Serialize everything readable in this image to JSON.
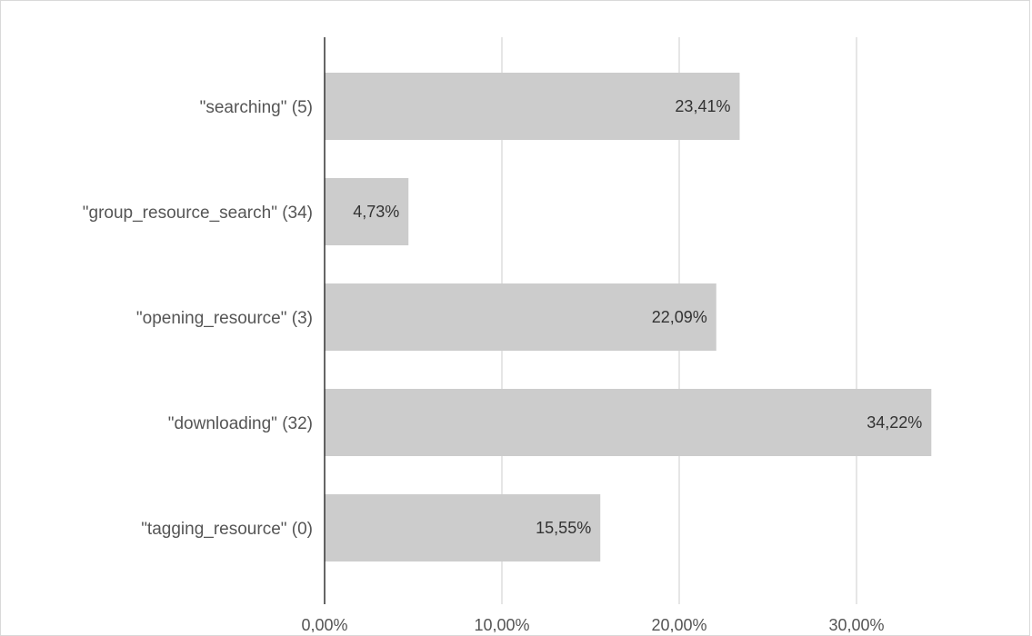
{
  "chart_data": {
    "type": "bar",
    "orientation": "horizontal",
    "categories": [
      "\"searching\" (5)",
      "\"group_resource_search\" (34)",
      "\"opening_resource\"  (3)",
      "\"downloading\" (32)",
      "\"tagging_resource\" (0)"
    ],
    "values": [
      23.41,
      4.73,
      22.09,
      34.22,
      15.55
    ],
    "value_labels": [
      "23,41%",
      "4,73%",
      "22,09%",
      "34,22%",
      "15,55%"
    ],
    "xlim": [
      0,
      38
    ],
    "x_ticks": [
      0,
      10,
      20,
      30
    ],
    "x_tick_labels": [
      "0,00%",
      "10,00%",
      "20,00%",
      "30,00%"
    ],
    "grid": true,
    "legend": "none",
    "title": "",
    "xlabel": "",
    "ylabel": "",
    "colors": {
      "bar": "#cccccc",
      "axis": "#333333",
      "grid": "#cccccc"
    }
  }
}
